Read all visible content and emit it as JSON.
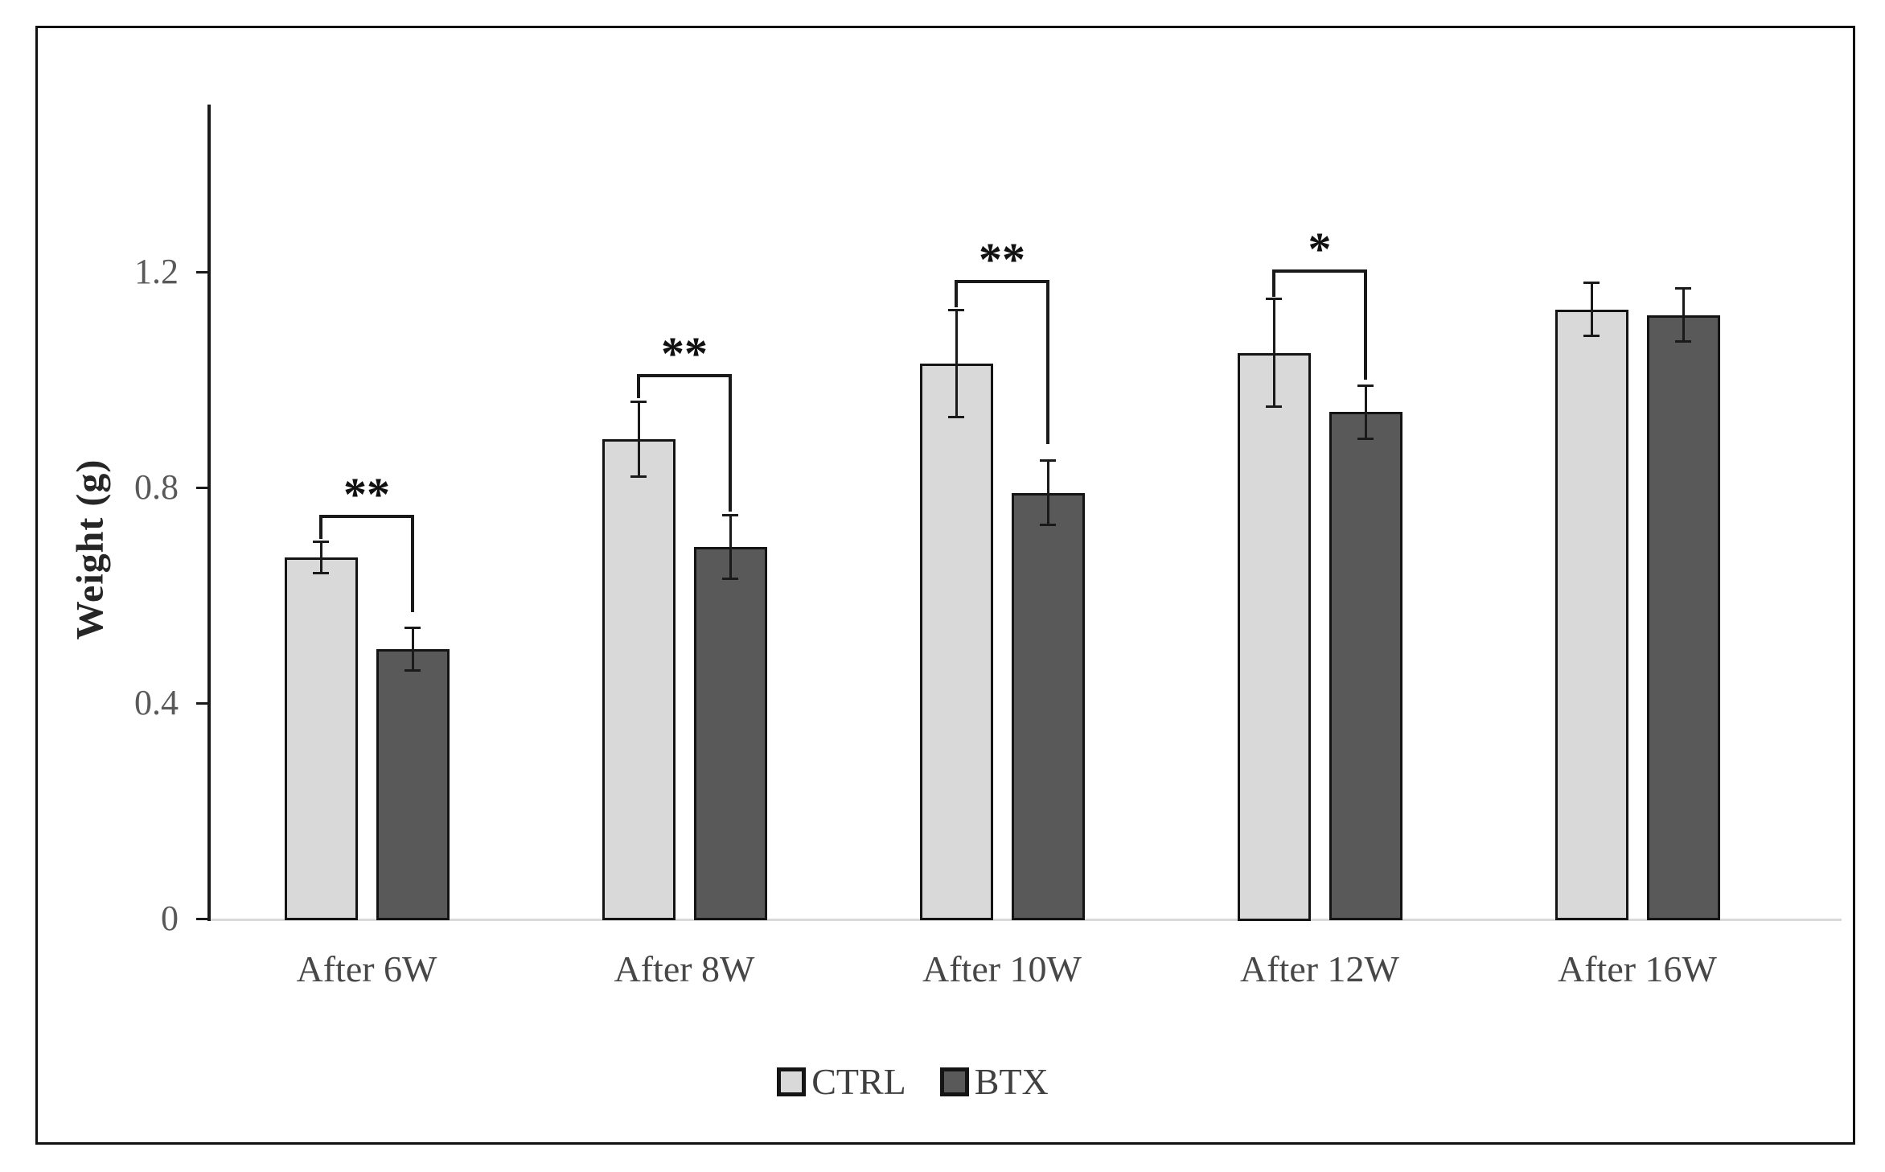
{
  "chart_data": {
    "type": "bar",
    "title": "",
    "xlabel": "",
    "ylabel": "Weight (g)",
    "categories": [
      "After 6W",
      "After 8W",
      "After 10W",
      "After 12W",
      "After 16W"
    ],
    "series": [
      {
        "name": "CTRL",
        "color": "#d9d9d9",
        "values": [
          0.67,
          0.89,
          1.03,
          1.05,
          1.13
        ],
        "errors": [
          0.03,
          0.07,
          0.1,
          0.1,
          0.05
        ]
      },
      {
        "name": "BTX",
        "color": "#595959",
        "values": [
          0.5,
          0.69,
          0.79,
          0.94,
          1.12
        ],
        "errors": [
          0.04,
          0.06,
          0.06,
          0.05,
          0.05
        ]
      }
    ],
    "error_bars": true,
    "yticks": [
      0,
      0.4,
      0.8,
      1.2
    ],
    "ytick_labels": [
      "0",
      "0.4",
      "0.8",
      "1.2"
    ],
    "ylim": [
      0,
      1.51
    ],
    "grid": false,
    "legend": {
      "position": "bottom",
      "entries": [
        "CTRL",
        "BTX"
      ]
    },
    "significance": [
      {
        "category": "After 6W",
        "label": "**",
        "bar_y": 0.75,
        "left_end": 0.705,
        "right_end": 0.57
      },
      {
        "category": "After 8W",
        "label": "**",
        "bar_y": 1.01,
        "left_end": 0.965,
        "right_end": 0.755
      },
      {
        "category": "After 10W",
        "label": "**",
        "bar_y": 1.185,
        "left_end": 1.135,
        "right_end": 0.88
      },
      {
        "category": "After 12W",
        "label": "*",
        "bar_y": 1.205,
        "left_end": 1.155,
        "right_end": 1.0
      }
    ],
    "colors": {
      "ctrl_fill": "#d9d9d9",
      "btx_fill": "#595959",
      "bar_border": "#141414",
      "line": "#1a1a1a",
      "baseline": "#d9d9d9",
      "tick_text": "#595959",
      "axis_text": "#474747",
      "sig_text": "#111111",
      "legend_text": "#404040",
      "frame_border": "#111111"
    }
  }
}
